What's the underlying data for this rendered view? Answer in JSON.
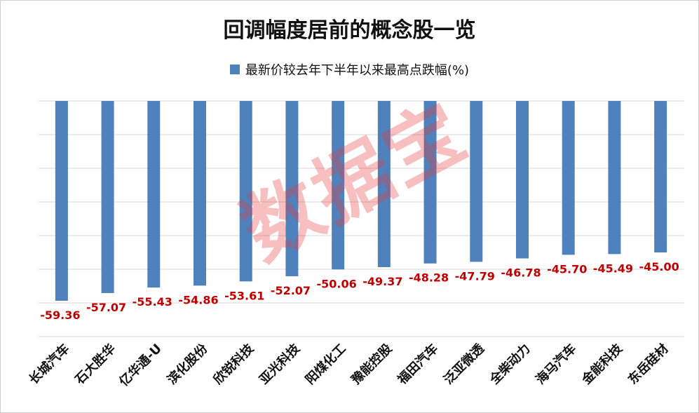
{
  "chart_data": {
    "type": "bar",
    "title": "回调幅度居前的概念股一览",
    "legend": "最新价较去年下半年以来最高点跌幅(%)",
    "legend_position": "top",
    "categories": [
      "长城汽车",
      "石大胜华",
      "亿华通-U",
      "滨化股份",
      "欣锐科技",
      "亚光科技",
      "阳煤化工",
      "豫能控股",
      "福田汽车",
      "泛亚微透",
      "全柴动力",
      "海马汽车",
      "金能科技",
      "东岳硅材"
    ],
    "values": [
      -59.36,
      -57.07,
      -55.43,
      -54.86,
      -53.61,
      -52.07,
      -50.06,
      -49.37,
      -48.28,
      -47.79,
      -46.78,
      -45.7,
      -45.49,
      -45.0
    ],
    "value_labels": [
      "-59.36",
      "-57.07",
      "-55.43",
      "-54.86",
      "-53.61",
      "-52.07",
      "-50.06",
      "-49.37",
      "-48.28",
      "-47.79",
      "-46.78",
      "-45.70",
      "-45.49",
      "-45.00"
    ],
    "ylim": [
      -70,
      0
    ],
    "grid": true,
    "bar_color": "#4f81bd",
    "label_color": "#c00000"
  },
  "watermark": "数据宝"
}
